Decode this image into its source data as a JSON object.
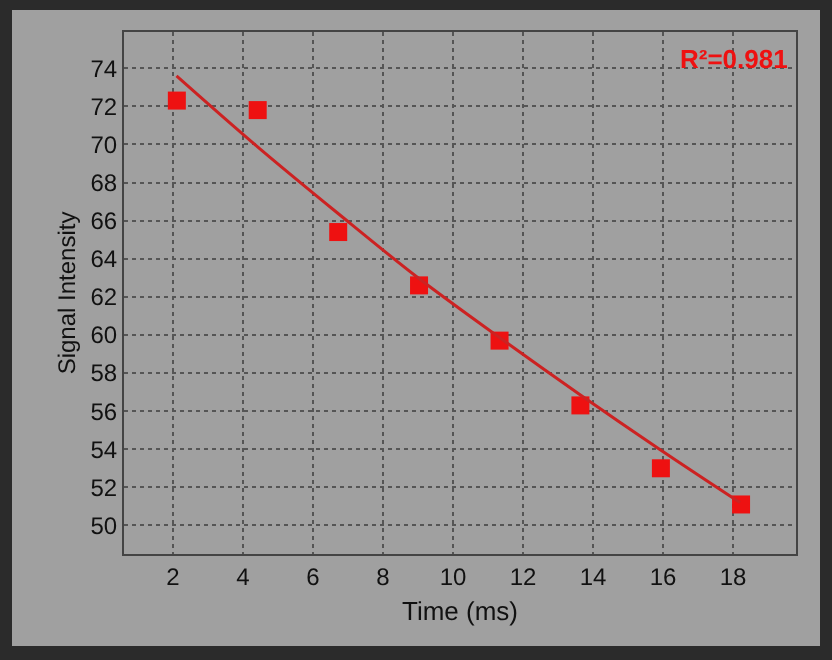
{
  "chart_data": {
    "type": "scatter",
    "xlabel": "Time (ms)",
    "ylabel": "Signal Intensity",
    "xlim": [
      0.6,
      19.8
    ],
    "xticks": [
      2,
      4,
      6,
      8,
      10,
      12,
      14,
      16,
      18
    ],
    "ylim": [
      48.5,
      75.9
    ],
    "yticks": [
      50,
      52,
      54,
      56,
      58,
      60,
      62,
      64,
      66,
      68,
      70,
      72,
      74
    ],
    "grid": true,
    "annotations": [
      "R²=0.981"
    ],
    "series": [
      {
        "marker": "square",
        "color": "#ee1111",
        "x": [
          2.11,
          4.42,
          6.72,
          9.03,
          11.33,
          13.64,
          15.94,
          18.23
        ],
        "values": [
          72.3,
          71.8,
          65.4,
          62.6,
          59.7,
          56.3,
          53.0,
          51.1
        ]
      },
      {
        "type": "line",
        "marker": "none",
        "color": "#cc2222",
        "line_style": "solid",
        "x": [
          2.1,
          4.4,
          6.7,
          9.0,
          11.3,
          13.6,
          15.9,
          18.2
        ],
        "values": [
          73.6,
          69.9,
          66.4,
          63.0,
          59.9,
          56.9,
          54.0,
          51.2
        ]
      }
    ]
  }
}
